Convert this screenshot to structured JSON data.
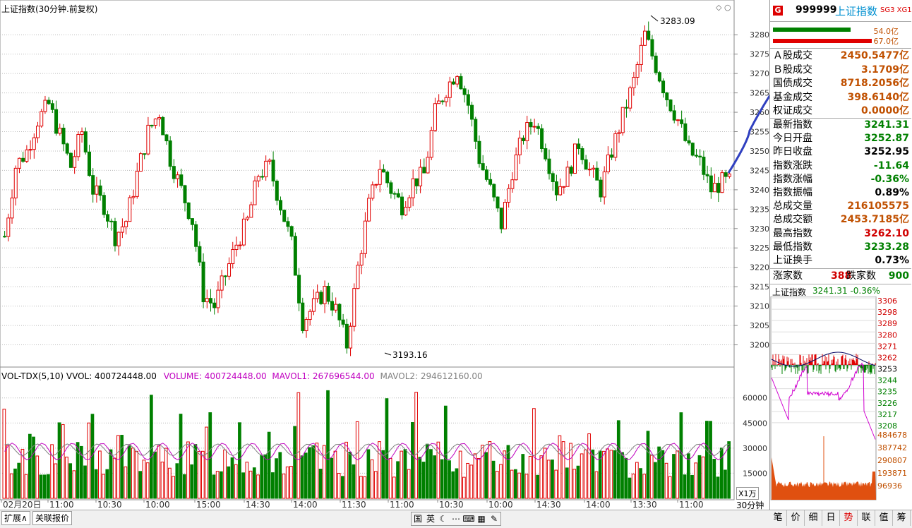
{
  "chart": {
    "title": "上证指数(30分钟.前复权)",
    "max_label": "3283.09",
    "min_label": "3193.16",
    "y_ticks": [
      "3280",
      "3275",
      "3270",
      "3265",
      "3260",
      "3255",
      "3250",
      "3245",
      "3240",
      "3235",
      "3230",
      "3225",
      "3220",
      "3215",
      "3210",
      "3205",
      "3200"
    ],
    "x_ticks": [
      "02月20日",
      "11:00",
      "10:30",
      "10:00",
      "15:00",
      "14:30",
      "14:00",
      "11:30",
      "11:00",
      "10:30",
      "10:00",
      "14:30",
      "14:00",
      "13:30",
      "11:00"
    ],
    "period_label": "30分钟",
    "volume_unit": "X1万"
  },
  "volume": {
    "indicator": "VOL-TDX(5,10)",
    "vvol": "VVOL: 400724448.00",
    "volume": "VOLUME: 400724448.00",
    "mavol1": "MAVOL1: 267696544.00",
    "mavol2": "MAVOL2: 294612160.00",
    "y_ticks": [
      "60000",
      "45000",
      "30000",
      "15000"
    ]
  },
  "quote": {
    "badge": "G",
    "code": "999999",
    "name": "上证指数",
    "tags": "SG3 XG1",
    "bar1_value": "54.0亿",
    "bar2_value": "67.0亿",
    "rows_a": [
      {
        "label": "Ａ股成交",
        "value": "2450.5477亿"
      },
      {
        "label": "Ｂ股成交",
        "value": "3.1709亿"
      },
      {
        "label": "国债成交",
        "value": "8718.2056亿"
      },
      {
        "label": "基金成交",
        "value": "398.6140亿"
      },
      {
        "label": "权证成交",
        "value": "0.0000亿"
      }
    ],
    "rows_b": [
      {
        "label": "最新指数",
        "value": "3241.31",
        "color": "#008000"
      },
      {
        "label": "今日开盘",
        "value": "3252.87",
        "color": "#008000"
      },
      {
        "label": "昨日收盘",
        "value": "3252.95",
        "color": "#000000"
      },
      {
        "label": "指数涨跌",
        "value": "-11.64",
        "color": "#008000"
      },
      {
        "label": "指数涨幅",
        "value": "-0.36%",
        "color": "#008000"
      },
      {
        "label": "指数振幅",
        "value": "0.89%",
        "color": "#000000"
      },
      {
        "label": "总成交量",
        "value": "216105575",
        "color": "#c05000"
      },
      {
        "label": "总成交额",
        "value": "2453.7185亿",
        "color": "#c05000"
      },
      {
        "label": "最高指数",
        "value": "3262.10",
        "color": "#d00000"
      },
      {
        "label": "最低指数",
        "value": "3233.28",
        "color": "#008000"
      },
      {
        "label": "上证换手",
        "value": "0.73%",
        "color": "#000000"
      }
    ],
    "up_label": "涨家数",
    "up_count": "388",
    "down_label": "跌家数",
    "down_count": "900"
  },
  "mini": {
    "title": "上证指数",
    "value": "3241.31 -0.36%",
    "price_ticks": [
      "3306",
      "3298",
      "3289",
      "3280",
      "3271",
      "3262",
      "3253",
      "3244",
      "3235",
      "3226",
      "3217",
      "3208"
    ],
    "vol_ticks": [
      "484678",
      "387742",
      "290807",
      "193871",
      "96936"
    ]
  },
  "bottom": {
    "tab1": "扩展∧",
    "tab2": "关联报价",
    "ime": [
      "国",
      "英",
      "☾",
      "⋯",
      "⌨",
      "▦",
      "✎"
    ],
    "right_tabs": [
      "笔",
      "价",
      "细",
      "日",
      "势",
      "联",
      "值",
      "筹"
    ]
  },
  "colors": {
    "up": "#e00000",
    "down": "#008000",
    "ma1": "#c000c0",
    "ma2": "#808080",
    "blue": "#3040c0"
  }
}
